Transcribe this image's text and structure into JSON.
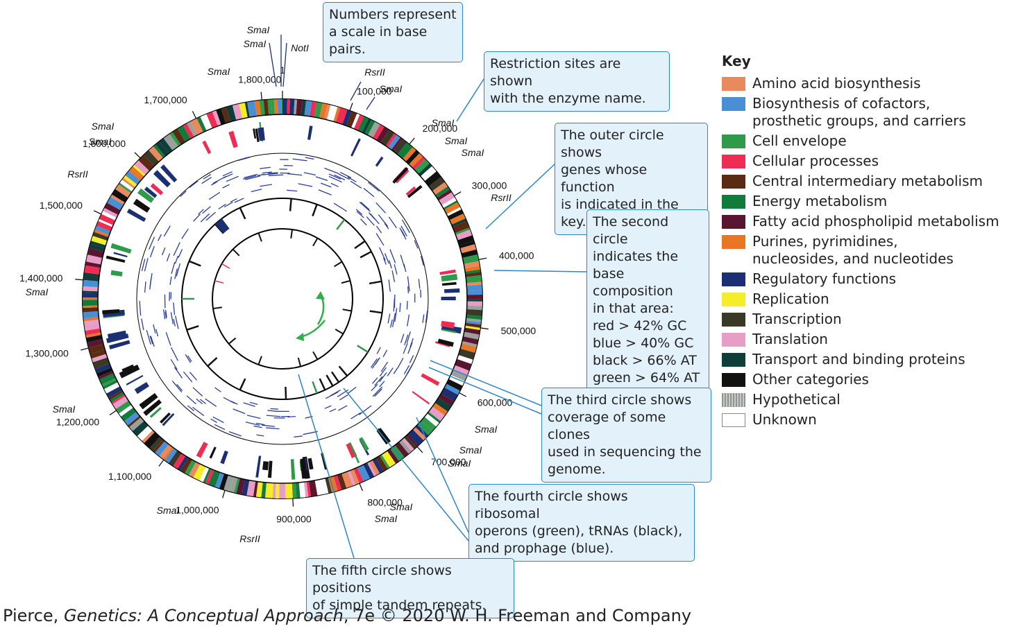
{
  "callouts": {
    "scale": "Numbers represent\na scale in base pairs.",
    "restriction": "Restriction sites are shown\nwith the enzyme name.",
    "outer": "The outer circle shows\ngenes whose function\nis indicated in the key.",
    "second": "The second circle\nindicates the\nbase composition\nin that area:\nred > 42% GC\nblue > 40% GC\nblack > 66% AT\ngreen > 64% AT",
    "third": "The third circle shows\ncoverage of some clones\nused in sequencing the\ngenome.",
    "fourth": "The fourth circle shows ribosomal\noperons (green), tRNAs (black),\nand prophage (blue).",
    "fifth": "The fifth circle shows positions\nof simple tandem repeats."
  },
  "scale_labels": [
    "1",
    "100,000",
    "200,000",
    "300,000",
    "400,000",
    "500,000",
    "600,000",
    "700,000",
    "800,000",
    "900,000",
    "1,000,000",
    "1,100,000",
    "1,200,000",
    "1,300,000",
    "1,400,000",
    "1,500,000",
    "1,600,000",
    "1,700,000",
    "1,800,000"
  ],
  "enzymes": {
    "smai": "SmaI",
    "rsrii": "RsrII",
    "noti": "NotI"
  },
  "legend": {
    "title": "Key",
    "items": [
      {
        "label": "Amino acid biosynthesis",
        "color": "#e8895e"
      },
      {
        "label": "Biosynthesis of cofactors,\n    prosthetic groups, and carriers",
        "color": "#4a8fd4"
      },
      {
        "label": "Cell envelope",
        "color": "#2e9a4a"
      },
      {
        "label": "Cellular processes",
        "color": "#ee2d55"
      },
      {
        "label": "Central intermediary metabolism",
        "color": "#5a2a12"
      },
      {
        "label": "Energy metabolism",
        "color": "#127a3a"
      },
      {
        "label": "Fatty acid phospholipid metabolism",
        "color": "#5a1530"
      },
      {
        "label": "Purines, pyrimidines,\n    nucleosides, and nucleotides",
        "color": "#e77625"
      },
      {
        "label": "Regulatory functions",
        "color": "#1d2f73"
      },
      {
        "label": "Replication",
        "color": "#f5ec2a"
      },
      {
        "label": "Transcription",
        "color": "#3a3826"
      },
      {
        "label": "Translation",
        "color": "#e79dc6"
      },
      {
        "label": "Transport and binding proteins",
        "color": "#0f3e3a"
      },
      {
        "label": "Other categories",
        "color": "#111111"
      },
      {
        "label": "Hypothetical",
        "color": "#9aa09a"
      },
      {
        "label": "Unknown",
        "color": "#ffffff"
      }
    ]
  },
  "credit": {
    "author": "Pierce, ",
    "book": "Genetics: A Conceptual Approach",
    "rest": ", 7e © 2020 W. H. Freeman and Company"
  }
}
